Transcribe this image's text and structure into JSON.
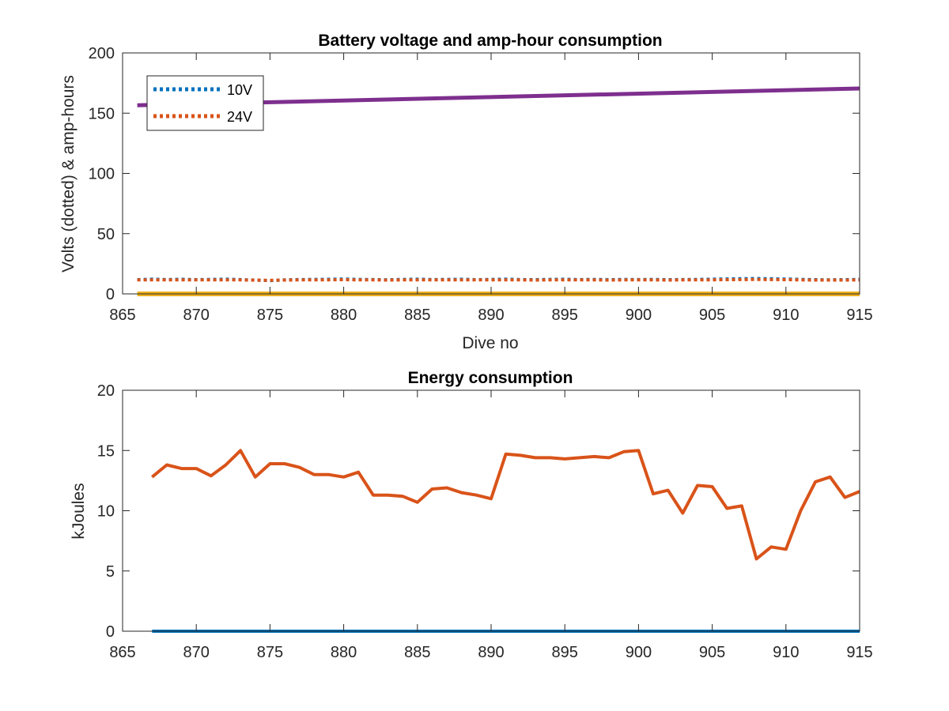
{
  "chart_data": [
    {
      "type": "line",
      "title": "Battery voltage and amp-hour consumption",
      "xlabel": "Dive no",
      "ylabel": "Volts (dotted) & amp-hours",
      "xlim": [
        865,
        915
      ],
      "ylim": [
        0,
        200
      ],
      "xticks": [
        865,
        870,
        875,
        880,
        885,
        890,
        895,
        900,
        905,
        910,
        915
      ],
      "yticks": [
        0,
        50,
        100,
        150,
        200
      ],
      "grid": false,
      "legend_position": "top-left",
      "legend": [
        "10V",
        "24V"
      ],
      "series": [
        {
          "name": "10V",
          "style": "dotted",
          "color": "#0072BD",
          "x": [
            866,
            867,
            868,
            869,
            870,
            871,
            872,
            873,
            874,
            875,
            876,
            877,
            878,
            879,
            880,
            881,
            882,
            883,
            884,
            885,
            886,
            887,
            888,
            889,
            890,
            891,
            892,
            893,
            894,
            895,
            896,
            897,
            898,
            899,
            900,
            901,
            902,
            903,
            904,
            905,
            906,
            907,
            908,
            909,
            910,
            911,
            912,
            913,
            914,
            915
          ],
          "y": [
            11.8,
            12.2,
            11.9,
            12.1,
            11.8,
            12.0,
            12.2,
            11.9,
            11.5,
            11.0,
            11.6,
            11.9,
            12.0,
            12.1,
            12.3,
            12.0,
            11.9,
            11.7,
            12.0,
            12.2,
            11.9,
            12.0,
            12.1,
            11.8,
            12.0,
            12.2,
            11.9,
            11.8,
            12.0,
            12.1,
            11.9,
            12.0,
            11.8,
            12.0,
            11.9,
            12.0,
            11.8,
            11.9,
            12.0,
            12.2,
            12.4,
            12.6,
            12.7,
            12.5,
            12.3,
            12.0,
            11.8,
            11.7,
            11.8,
            12.0
          ]
        },
        {
          "name": "24V",
          "style": "dotted",
          "color": "#D95319",
          "x": [
            866,
            867,
            868,
            869,
            870,
            871,
            872,
            873,
            874,
            875,
            876,
            877,
            878,
            879,
            880,
            881,
            882,
            883,
            884,
            885,
            886,
            887,
            888,
            889,
            890,
            891,
            892,
            893,
            894,
            895,
            896,
            897,
            898,
            899,
            900,
            901,
            902,
            903,
            904,
            905,
            906,
            907,
            908,
            909,
            910,
            911,
            912,
            913,
            914,
            915
          ],
          "y": [
            11.6,
            11.7,
            11.6,
            11.7,
            11.6,
            11.6,
            11.7,
            11.6,
            11.4,
            11.2,
            11.5,
            11.6,
            11.6,
            11.7,
            11.8,
            11.6,
            11.6,
            11.5,
            11.6,
            11.7,
            11.6,
            11.6,
            11.7,
            11.6,
            11.6,
            11.7,
            11.6,
            11.5,
            11.6,
            11.7,
            11.6,
            11.6,
            11.5,
            11.6,
            11.6,
            11.6,
            11.5,
            11.6,
            11.6,
            11.7,
            11.8,
            11.9,
            12.0,
            11.9,
            11.8,
            11.6,
            11.5,
            11.5,
            11.5,
            11.6
          ]
        },
        {
          "style": "solid",
          "color": "#7E2F8E",
          "x": [
            866,
            915
          ],
          "y": [
            156.5,
            170.5
          ]
        },
        {
          "style": "solid",
          "color": "#EDB120",
          "x": [
            866,
            915
          ],
          "y": [
            0,
            0
          ]
        }
      ]
    },
    {
      "type": "line",
      "title": "Energy consumption",
      "xlabel": "",
      "ylabel": "kJoules",
      "xlim": [
        865,
        915
      ],
      "ylim": [
        0,
        20
      ],
      "xticks": [
        865,
        870,
        875,
        880,
        885,
        890,
        895,
        900,
        905,
        910,
        915
      ],
      "yticks": [
        0,
        5,
        10,
        15,
        20
      ],
      "grid": false,
      "series": [
        {
          "style": "solid",
          "color": "#0072BD",
          "x": [
            867,
            915
          ],
          "y": [
            0,
            0
          ]
        },
        {
          "style": "solid",
          "color": "#D95319",
          "x": [
            867,
            868,
            869,
            870,
            871,
            872,
            873,
            874,
            875,
            876,
            877,
            878,
            879,
            880,
            881,
            882,
            883,
            884,
            885,
            886,
            887,
            888,
            889,
            890,
            891,
            892,
            893,
            894,
            895,
            896,
            897,
            898,
            899,
            900,
            901,
            902,
            903,
            904,
            905,
            906,
            907,
            908,
            909,
            910,
            911,
            912,
            913,
            914,
            915
          ],
          "y": [
            12.8,
            13.8,
            13.5,
            13.5,
            12.9,
            13.8,
            15.0,
            12.8,
            13.9,
            13.9,
            13.6,
            13.0,
            13.0,
            12.8,
            13.2,
            11.3,
            11.3,
            11.2,
            10.7,
            11.8,
            11.9,
            11.5,
            11.3,
            11.0,
            14.7,
            14.6,
            14.4,
            14.4,
            14.3,
            14.4,
            14.5,
            14.4,
            14.9,
            15.0,
            11.4,
            11.7,
            9.8,
            12.1,
            12.0,
            10.2,
            10.4,
            6.0,
            7.0,
            6.8,
            10.0,
            12.4,
            12.8,
            11.1,
            11.6
          ]
        }
      ]
    }
  ]
}
